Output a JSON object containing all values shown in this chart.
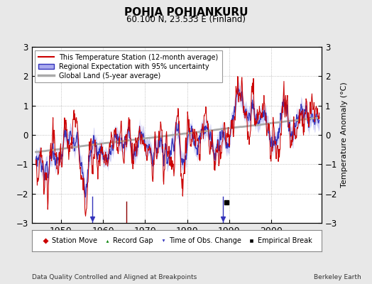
{
  "title": "POHJA POHJANKURU",
  "subtitle": "60.100 N, 23.533 E (Finland)",
  "ylabel": "Temperature Anomaly (°C)",
  "footer_left": "Data Quality Controlled and Aligned at Breakpoints",
  "footer_right": "Berkeley Earth",
  "ylim": [
    -3,
    3
  ],
  "xlim": [
    1943,
    2012
  ],
  "yticks": [
    -3,
    -2,
    -1,
    0,
    1,
    2,
    3
  ],
  "xticks": [
    1950,
    1960,
    1970,
    1980,
    1990,
    2000
  ],
  "background_color": "#e8e8e8",
  "plot_bg_color": "#ffffff",
  "red_color": "#cc0000",
  "blue_color": "#3333bb",
  "blue_fill_color": "#aaaaee",
  "gray_color": "#aaaaaa",
  "legend_entries": [
    "This Temperature Station (12-month average)",
    "Regional Expectation with 95% uncertainty",
    "Global Land (5-year average)"
  ],
  "empirical_break_year": 1989.3,
  "time_obs_change_years": [
    1957.5,
    1988.5
  ],
  "station_move_years": [],
  "record_gap_years": [
    1965.5
  ]
}
